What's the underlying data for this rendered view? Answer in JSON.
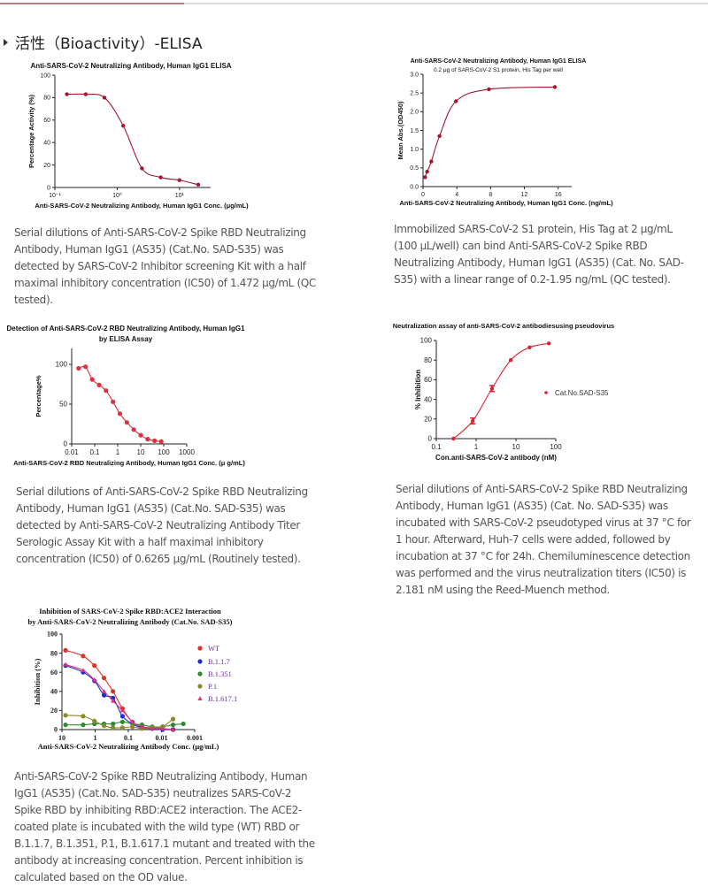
{
  "section": {
    "title": "活性（Bioactivity）-ELISA"
  },
  "paragraphs": [
    {
      "lines": [
        "Serial dilutions of Anti-SARS-CoV-2 Spike RBD Neutralizing",
        "Antibody, Human IgG1 (AS35) (Cat.No. SAD-S35) was",
        "detected by SARS-CoV-2 Inhibitor screening Kit with a half",
        "maximal inhibitory concentration (IC50) of 1.472 μg/mL (QC",
        "tested)."
      ]
    },
    {
      "lines": [
        "Immobilized SARS-CoV-2 S1 protein, His Tag at 2 μg/mL",
        "(100 μL/well) can bind Anti-SARS-CoV-2 Spike RBD",
        "Neutralizing Antibody, Human IgG1 (AS35) (Cat. No. SAD-",
        "S35) with a linear range of 0.2-1.95 ng/mL (QC tested)."
      ]
    },
    {
      "lines": [
        "Serial dilutions of Anti-SARS-CoV-2 Spike RBD Neutralizing",
        "Antibody, Human IgG1 (AS35) (Cat.No. SAD-S35) was",
        "detected by Anti-SARS-CoV-2 Neutralizing Antibody Titer",
        "Serologic Assay Kit with a half maximal inhibitory",
        "concentration (IC50) of 0.6265 μg/mL (Routinely tested)."
      ]
    },
    {
      "lines": [
        "Serial dilutions of Anti-SARS-CoV-2 Spike RBD Neutralizing",
        "Antibody, Human IgG1 (AS35) (Cat. No. SAD-S35) was",
        "incubated with SARS-CoV-2 pseudotyped virus at 37 °C for",
        "1 hour. Afterward, Huh-7 cells were added, followed by",
        "incubation at 37 °C for 24h. Chemiluminescence detection",
        "was performed and the virus neutralization titers (IC50) is",
        "2.181 nM using the Reed-Muench method."
      ]
    },
    {
      "lines": [
        "Anti-SARS-CoV-2 Spike RBD Neutralizing Antibody, Human",
        "IgG1 (AS35) (Cat.No. SAD-S35) neutralizes SARS-CoV-2",
        "Spike RBD by inhibiting RBD:ACE2 interaction. The ACE2-",
        "coated plate is incubated with the wild type (WT) RBD or",
        "B.1.1.7, B.1.351, P.1, B.1.617.1 mutant and treated with the",
        "antibody at increasing concentration. Percent inhibition is",
        "calculated based on the OD value."
      ]
    }
  ],
  "chart_data": [
    {
      "type": "scatter",
      "title": [
        "Anti-SARS-CoV-2 Neutralizing Antibody, Human IgG1 ELISA"
      ],
      "xlabel": "Anti-SARS-CoV-2 Neutralizing Antibody, Human IgG1 Conc. (μg/mL)",
      "ylabel": "Percentage Activity (%)",
      "xscale": "log",
      "xlim": [
        0.1,
        31.6
      ],
      "ylim": [
        0,
        100
      ],
      "xticks": [
        0.1,
        1,
        10
      ],
      "xtick_labels": [
        "10⁻¹",
        "10⁰",
        "10¹"
      ],
      "yticks": [
        0,
        20,
        40,
        60,
        80,
        100
      ],
      "ytick_labels": [
        "0",
        "20",
        "40",
        "60",
        "80",
        "100"
      ],
      "series": [
        {
          "name": "",
          "color": "#a01830",
          "x": [
            0.156,
            0.3125,
            0.625,
            1.25,
            2.5,
            5,
            10,
            20
          ],
          "y": [
            83,
            83,
            80,
            55,
            17,
            9,
            6.5,
            2.5
          ]
        }
      ]
    },
    {
      "type": "scatter",
      "title": [
        "Anti-SARS-CoV-2 Neutralizing Antibody, Human IgG1 ELISA",
        "0.2 μg of SARS-CoV-2 S1 protein, His Tag per well"
      ],
      "xlabel": "Anti-SARS-CoV-2 Neutralizing Antibody, Human IgG1 Conc. (ng/mL)",
      "ylabel": "Mean Abs.(OD450)",
      "xscale": "linear",
      "xlim": [
        0,
        17.6
      ],
      "ylim": [
        0,
        3
      ],
      "xticks": [
        0,
        4,
        8,
        12,
        16
      ],
      "xtick_labels": [
        "0",
        "4",
        "8",
        "12",
        "16"
      ],
      "yticks": [
        0,
        0.5,
        1,
        1.5,
        2,
        2.5,
        3
      ],
      "ytick_labels": [
        "0.0",
        "0.5",
        "1.0",
        "1.5",
        "2.0",
        "2.5",
        "3.0"
      ],
      "series": [
        {
          "name": "",
          "color": "#a01830",
          "x": [
            0.24,
            0.49,
            0.98,
            1.95,
            3.9,
            7.8,
            15.6
          ],
          "y": [
            0.25,
            0.4,
            0.67,
            1.35,
            2.28,
            2.6,
            2.66
          ]
        }
      ]
    },
    {
      "type": "scatter",
      "title": [
        "Detection of Anti-SARS-CoV-2 RBD Neutralizing Antibody, Human IgG1",
        "by ELISA Assay"
      ],
      "xlabel": "Anti-SARS-CoV-2 RBD Neutralizing Antibody, Human IgG1 Conc. (μ g/mL)",
      "ylabel": "Percentage%",
      "xscale": "log",
      "xlim": [
        0.01,
        1000
      ],
      "ylim": [
        0,
        120
      ],
      "xticks": [
        0.01,
        0.1,
        1,
        10,
        100,
        1000
      ],
      "xtick_labels": [
        "0.01",
        "0.1",
        "1",
        "10",
        "100",
        "1000"
      ],
      "yticks": [
        0,
        50,
        100
      ],
      "ytick_labels": [
        "0",
        "50",
        "100"
      ],
      "series": [
        {
          "name": "",
          "color": "#e03040",
          "x": [
            0.02,
            0.04,
            0.078,
            0.156,
            0.31,
            0.625,
            1.25,
            2.5,
            5,
            10,
            20,
            40,
            78
          ],
          "y": [
            95,
            97,
            81,
            74,
            67,
            53,
            38,
            27,
            18,
            11,
            6,
            4,
            3
          ]
        }
      ]
    },
    {
      "type": "scatter",
      "title": [
        "Neutralization assay of anti-SARS-CoV-2 antibodiesusing pseudovirus"
      ],
      "xlabel": "Con.anti-SARS-CoV-2 antibody (nM)",
      "ylabel": "% Inhibition",
      "xscale": "log",
      "xlim": [
        0.1,
        100
      ],
      "ylim": [
        0,
        100
      ],
      "xticks": [
        0.1,
        1,
        10,
        100
      ],
      "xtick_labels": [
        "0.1",
        "1",
        "10",
        "100"
      ],
      "yticks": [
        0,
        20,
        40,
        60,
        80,
        100
      ],
      "ytick_labels": [
        "0",
        "20",
        "40",
        "60",
        "80",
        "100"
      ],
      "legend_position": "right",
      "series": [
        {
          "name": "Cat.No.SAD-S35",
          "color": "#e02030",
          "x": [
            0.27,
            0.82,
            2.5,
            7.4,
            22,
            67
          ],
          "y": [
            0,
            18,
            51,
            80,
            93,
            97
          ],
          "err": [
            0,
            3,
            3,
            0,
            0,
            0
          ]
        }
      ]
    },
    {
      "type": "scatter",
      "title": [
        "Inhibition of SARS-CoV-2 Spike RBD:ACE2 Interaction",
        "by Anti-SARS-CoV-2 Neutralizing Antibody (Cat.No. SAD-S35)"
      ],
      "xlabel": "Anti-SARS-CoV-2 Neutralizing Antibody Conc. (μg/mL)",
      "ylabel": "Inhibition (%)",
      "xscale": "log",
      "xlim": [
        10,
        0.001
      ],
      "ylim": [
        0,
        100
      ],
      "xticks": [
        10,
        1,
        0.1,
        0.01,
        0.001
      ],
      "xtick_labels": [
        "10",
        "1",
        "0.1",
        "0.01",
        "0.001"
      ],
      "yticks": [
        0,
        20,
        40,
        60,
        80,
        100
      ],
      "ytick_labels": [
        "0",
        "20",
        "40",
        "60",
        "80",
        "100"
      ],
      "legend_position": "right",
      "series": [
        {
          "name": "WT",
          "color": "#e0302a",
          "x": [
            7.8,
            2.3,
            1.05,
            0.54,
            0.29,
            0.15,
            0.075,
            0.039,
            0.019,
            0.0093,
            0.0045
          ],
          "y": [
            83,
            77,
            67,
            54,
            40,
            22,
            8,
            3,
            2,
            1,
            0
          ]
        },
        {
          "name": "B.1.1.7",
          "color": "#1a2fd0",
          "x": [
            7.8,
            2.3,
            1.05,
            0.54,
            0.29,
            0.15,
            0.075,
            0.039,
            0.019,
            0.0093,
            0.0045
          ],
          "y": [
            67,
            60,
            51,
            36,
            33,
            14,
            6,
            2,
            1,
            0,
            0
          ]
        },
        {
          "name": "B.1.351",
          "color": "#2f8a2f",
          "x": [
            7.8,
            2.3,
            1.05,
            0.54,
            0.29,
            0.15,
            0.075,
            0.039,
            0.019,
            0.0093,
            0.0045,
            0.0022
          ],
          "y": [
            5,
            5,
            6,
            6,
            6,
            8,
            6,
            5,
            3,
            3,
            5,
            6
          ]
        },
        {
          "name": "P.1",
          "color": "#8a8a2a",
          "x": [
            7.8,
            2.3,
            1.05,
            0.54,
            0.29,
            0.15,
            0.075,
            0.039,
            0.019,
            0.0093,
            0.0045
          ],
          "y": [
            15,
            14,
            9,
            4,
            2,
            2,
            3,
            1,
            2,
            3,
            11
          ]
        },
        {
          "name": "B.1.617.1",
          "color": "#e0307a",
          "x": [
            7.8,
            2.3,
            1.05,
            0.54,
            0.29,
            0.15,
            0.075,
            0.039,
            0.019,
            0.0093,
            0.0045
          ],
          "y": [
            68,
            62,
            52,
            40,
            30,
            20,
            8,
            3,
            1,
            1,
            0
          ]
        }
      ]
    }
  ]
}
